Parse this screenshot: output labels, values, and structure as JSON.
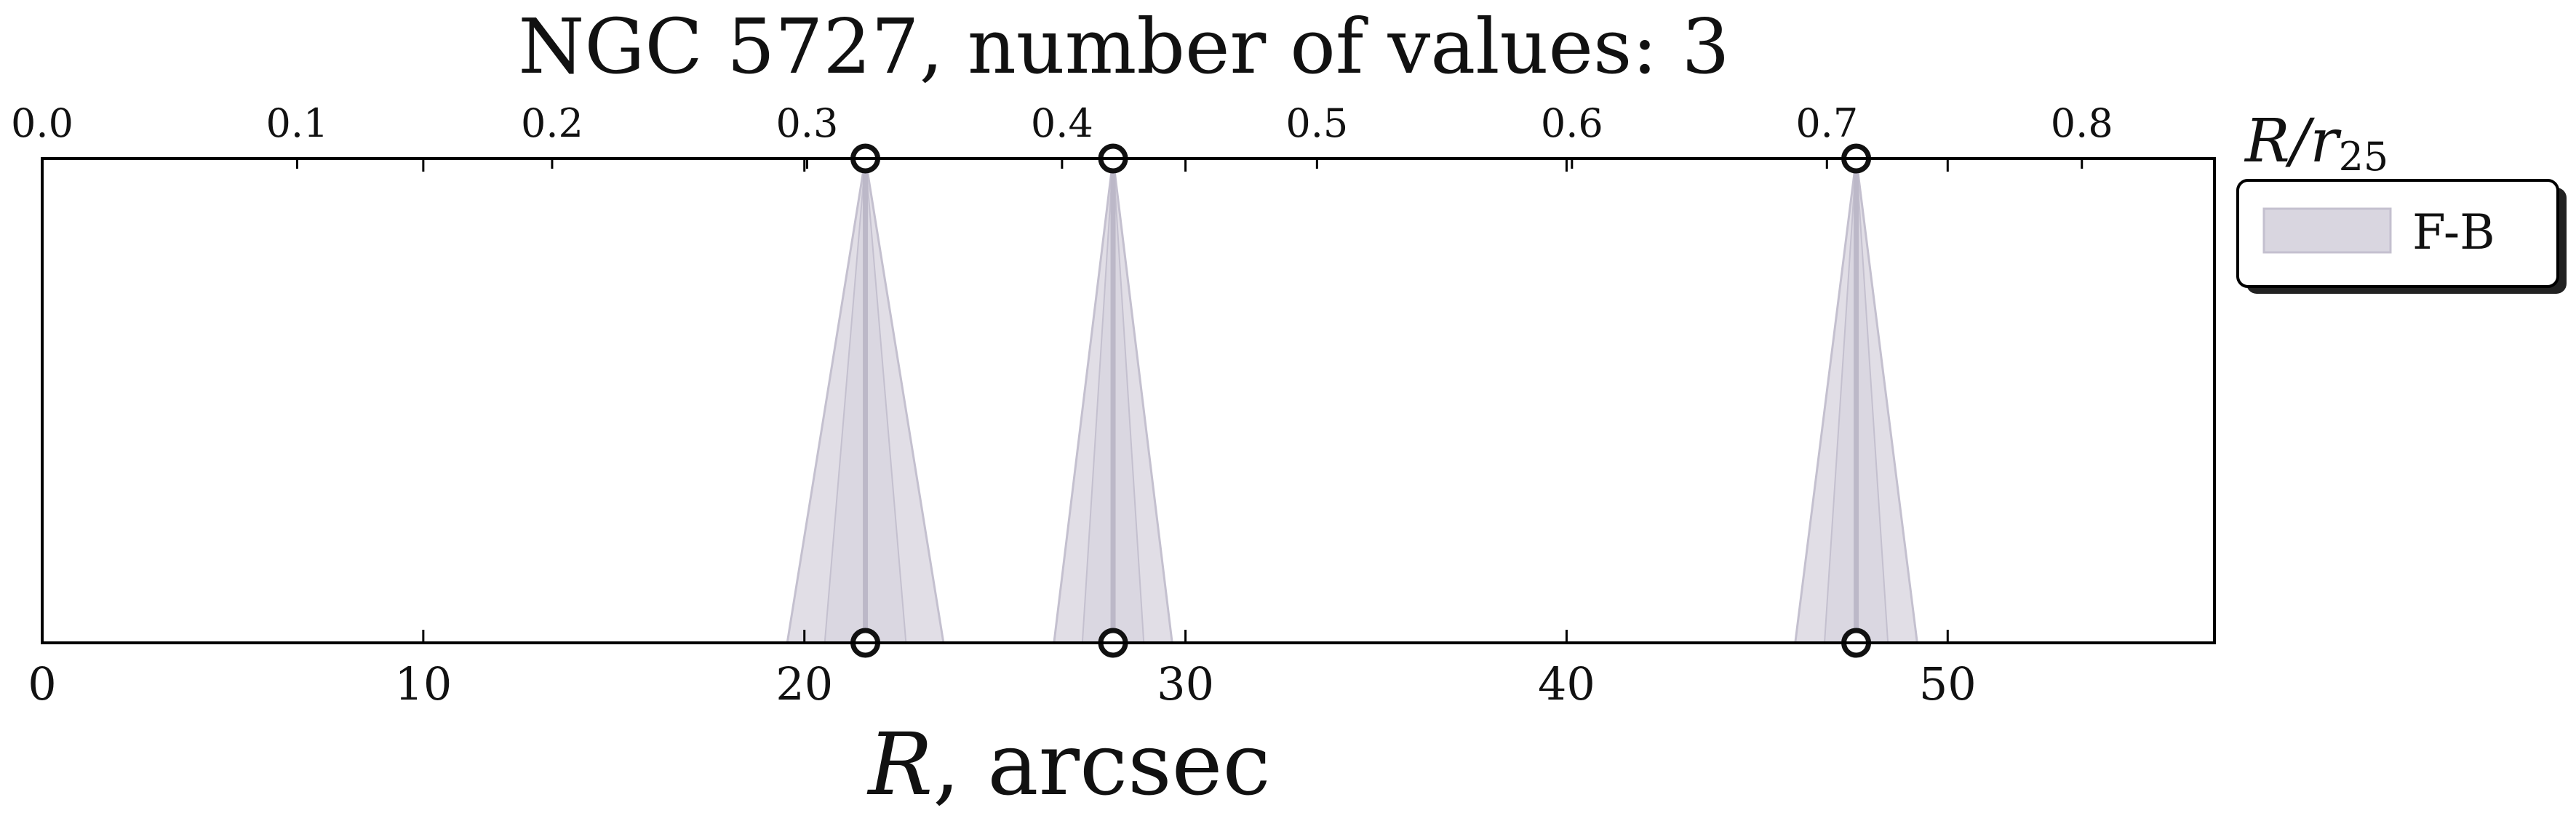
{
  "chart_data": {
    "type": "scatter",
    "title": "NGC 5727, number of values: 3",
    "xlabel_main": "R",
    "xlabel_unit": ", arcsec",
    "xlim": [
      0,
      57
    ],
    "x_ticks": [
      "0",
      "10",
      "20",
      "30",
      "40",
      "50"
    ],
    "x_tick_values": [
      0,
      10,
      20,
      30,
      40,
      50
    ],
    "top_axis_label_main": "R/r",
    "top_axis_label_sub": "25",
    "top_xlim": [
      0,
      0.852
    ],
    "top_ticks": [
      "0.0",
      "0.1",
      "0.2",
      "0.3",
      "0.4",
      "0.5",
      "0.6",
      "0.7",
      "0.8"
    ],
    "top_tick_values": [
      0.0,
      0.1,
      0.2,
      0.3,
      0.4,
      0.5,
      0.6,
      0.7,
      0.8
    ],
    "grid": false,
    "legend_position": "outside-right-top",
    "series": [
      {
        "name": "F-B",
        "color": "#d9d6e0",
        "line_color": "#c4c0cf",
        "points": [
          {
            "x": 21.6,
            "half_width_at_bottom": 2.05
          },
          {
            "x": 28.1,
            "half_width_at_bottom": 1.55
          },
          {
            "x": 47.6,
            "half_width_at_bottom": 1.6
          }
        ]
      }
    ]
  }
}
